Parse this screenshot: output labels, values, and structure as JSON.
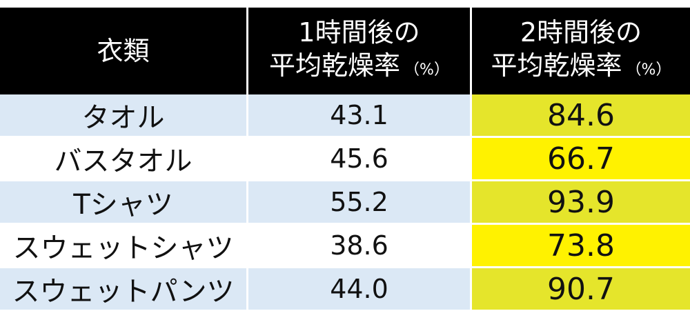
{
  "chart_data": {
    "type": "table",
    "columns": [
      {
        "label_line1": "衣類",
        "label_line2": "",
        "unit": ""
      },
      {
        "label_line1": "1時間後の",
        "label_line2": "平均乾燥率",
        "unit": "（%）"
      },
      {
        "label_line1": "2時間後の",
        "label_line2": "平均乾燥率",
        "unit": "（%）"
      }
    ],
    "rows": [
      {
        "item": "タオル",
        "v1": "43.1",
        "v2": "84.6"
      },
      {
        "item": "バスタオル",
        "v1": "45.6",
        "v2": "66.7"
      },
      {
        "item": "Tシャツ",
        "v1": "55.2",
        "v2": "93.9"
      },
      {
        "item": "スウェットシャツ",
        "v1": "38.6",
        "v2": "73.8"
      },
      {
        "item": "スウェットパンツ",
        "v1": "44.0",
        "v2": "90.7"
      }
    ],
    "highlight_column": 2,
    "colors": {
      "header_bg": "#000000",
      "header_text": "#ffffff",
      "row_alt": "#dbe8f5",
      "row_plain": "#ffffff",
      "highlight_alt": "#e5e52b",
      "highlight_plain": "#fff200"
    }
  }
}
